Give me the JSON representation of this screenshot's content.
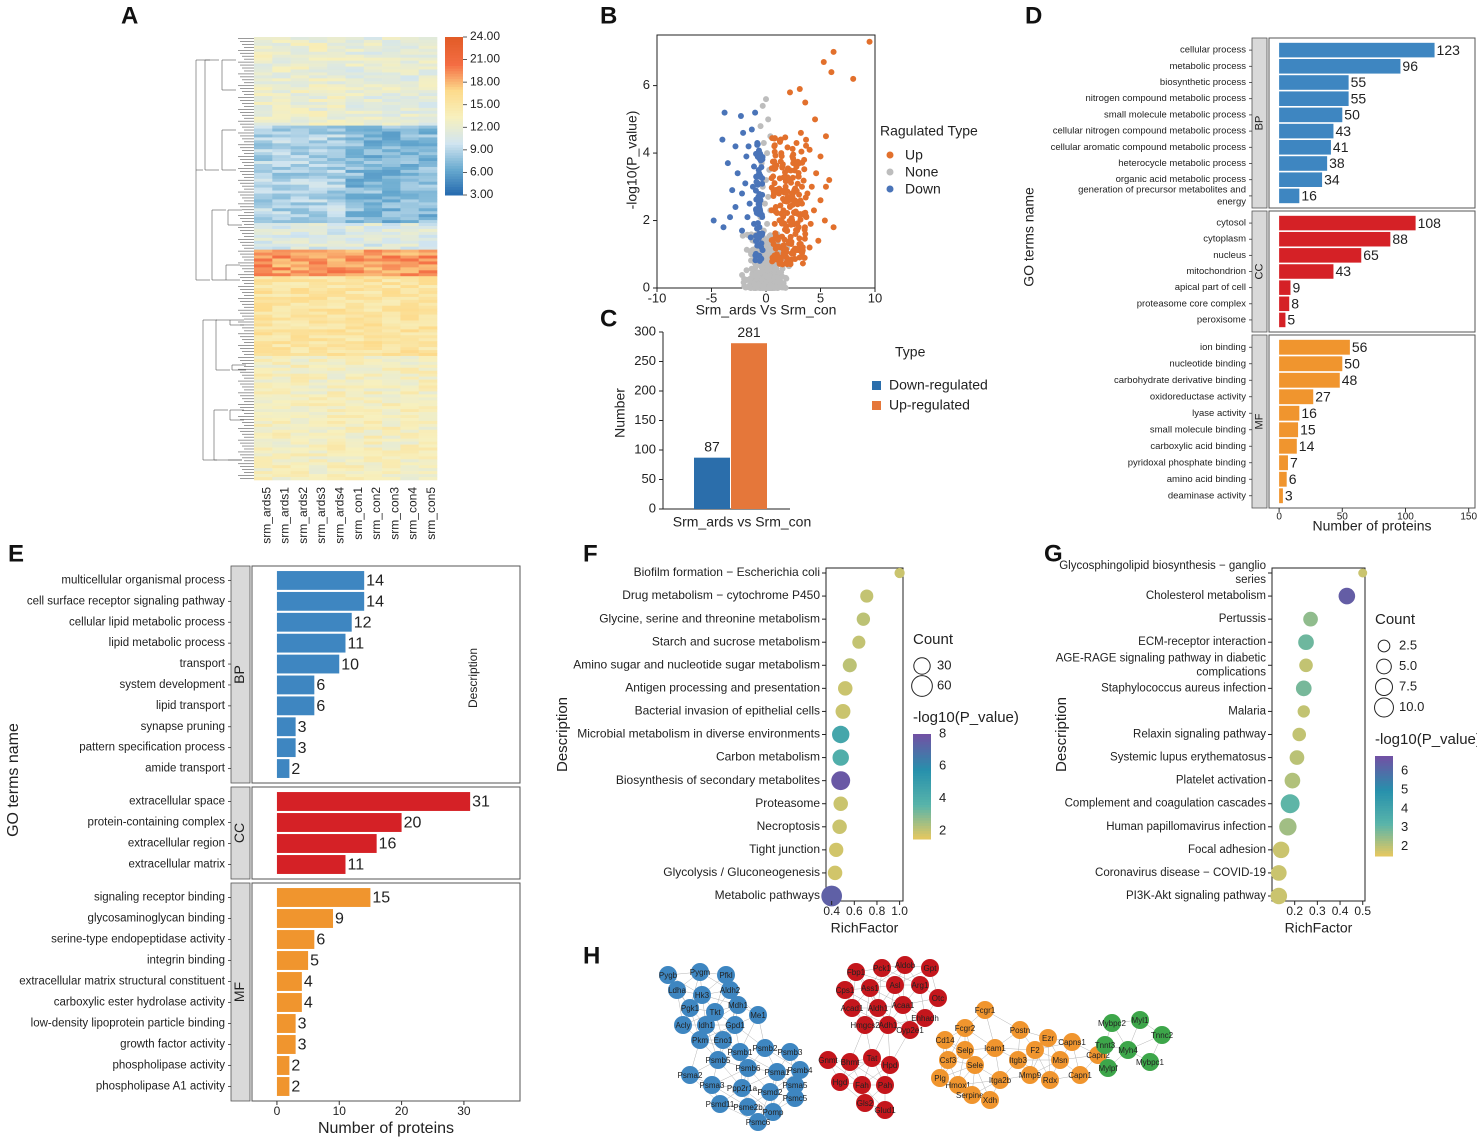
{
  "panel_letters": [
    "A",
    "B",
    "C",
    "D",
    "E",
    "F",
    "G",
    "H"
  ],
  "colors": {
    "up": "#E2702C",
    "down": "#4A74B8",
    "none": "#BDBDBD",
    "bp": "#3E86C1",
    "cc": "#D52126",
    "mf": "#F0952E",
    "bar_down": "#2B6EAB",
    "bar_up": "#E5773A",
    "net_blue": "#3E86C1",
    "net_red": "#C4161C",
    "net_orange": "#F0952E",
    "net_green": "#3DA64A",
    "strip": "#D9D9D9"
  },
  "chart_data": [
    {
      "id": "A",
      "type": "heatmap",
      "columns": [
        "srm_ards5",
        "srm_ards1",
        "srm_ards2",
        "srm_ards3",
        "srm_ards4",
        "srm_con1",
        "srm_con2",
        "srm_con3",
        "srm_con4",
        "srm_con5"
      ],
      "colorbar_ticks": [
        "24.00",
        "21.00",
        "18.00",
        "15.00",
        "12.00",
        "9.00",
        "6.00",
        "3.00"
      ],
      "value_range": [
        3,
        24
      ]
    },
    {
      "id": "B",
      "type": "scatter",
      "xlabel": "Srm_ards Vs Srm_con",
      "ylabel": "-log10(P_value)",
      "xticks": [
        "-10",
        "-5",
        "0",
        "5",
        "10"
      ],
      "yticks": [
        "0",
        "2",
        "4",
        "6"
      ],
      "xlim": [
        -10,
        10
      ],
      "ylim": [
        0,
        7.5
      ],
      "legend_title": "Ragulated Type",
      "legend": [
        "Up",
        "None",
        "Down"
      ],
      "up_points": [
        [
          9.5,
          7.3
        ],
        [
          6.2,
          7.0
        ],
        [
          5.3,
          6.7
        ],
        [
          6.0,
          6.4
        ],
        [
          8.0,
          6.2
        ],
        [
          3.1,
          5.9
        ],
        [
          3.6,
          5.5
        ],
        [
          2.2,
          5.8
        ],
        [
          4.5,
          5.0
        ],
        [
          5.5,
          4.5
        ],
        [
          3.2,
          4.6
        ],
        [
          2.8,
          4.3
        ],
        [
          4.0,
          4.1
        ],
        [
          5.0,
          3.9
        ],
        [
          3.5,
          3.8
        ],
        [
          2.5,
          3.7
        ],
        [
          4.6,
          3.4
        ],
        [
          3.0,
          3.3
        ],
        [
          2.0,
          3.5
        ],
        [
          1.5,
          3.6
        ],
        [
          5.8,
          3.2
        ],
        [
          4.2,
          3.0
        ],
        [
          2.6,
          2.9
        ],
        [
          3.8,
          2.8
        ],
        [
          1.8,
          3.0
        ],
        [
          1.2,
          2.8
        ],
        [
          5.0,
          2.6
        ],
        [
          3.3,
          2.5
        ],
        [
          2.2,
          2.4
        ],
        [
          4.4,
          2.3
        ],
        [
          1.6,
          2.3
        ],
        [
          2.9,
          2.2
        ],
        [
          0.9,
          2.4
        ],
        [
          3.7,
          2.1
        ],
        [
          5.4,
          2.0
        ],
        [
          2.4,
          2.0
        ],
        [
          1.3,
          2.0
        ],
        [
          4.1,
          1.9
        ],
        [
          3.0,
          1.8
        ],
        [
          0.8,
          1.9
        ],
        [
          1.9,
          1.7
        ],
        [
          2.7,
          1.6
        ],
        [
          3.6,
          1.6
        ],
        [
          1.1,
          1.5
        ],
        [
          2.2,
          1.4
        ],
        [
          0.7,
          1.3
        ],
        [
          1.6,
          1.2
        ],
        [
          3.1,
          1.3
        ],
        [
          2.5,
          1.1
        ],
        [
          1.0,
          1.0
        ],
        [
          1.9,
          0.9
        ],
        [
          0.6,
          0.9
        ],
        [
          4.8,
          1.4
        ],
        [
          4.0,
          1.2
        ],
        [
          6.2,
          1.8
        ],
        [
          5.5,
          3.0
        ],
        [
          1.4,
          4.0
        ],
        [
          2.0,
          2.7
        ],
        [
          3.3,
          3.0
        ]
      ],
      "down_points": [
        [
          -3.8,
          5.2
        ],
        [
          -2.3,
          5.1
        ],
        [
          -1.0,
          5.2
        ],
        [
          -4.0,
          4.4
        ],
        [
          -2.1,
          4.6
        ],
        [
          -1.3,
          4.7
        ],
        [
          -2.8,
          4.2
        ],
        [
          -1.6,
          4.2
        ],
        [
          -0.8,
          4.3
        ],
        [
          -3.5,
          3.7
        ],
        [
          -1.8,
          3.9
        ],
        [
          -1.1,
          3.6
        ],
        [
          -2.6,
          3.4
        ],
        [
          -0.9,
          3.3
        ],
        [
          -1.9,
          3.1
        ],
        [
          -3.1,
          2.9
        ],
        [
          -1.2,
          3.0
        ],
        [
          -2.2,
          2.8
        ],
        [
          -0.7,
          2.7
        ],
        [
          -1.5,
          2.5
        ],
        [
          -2.8,
          2.4
        ],
        [
          -0.9,
          2.3
        ],
        [
          -4.8,
          2.0
        ],
        [
          -1.7,
          2.1
        ],
        [
          -3.3,
          2.1
        ],
        [
          -1.1,
          1.9
        ],
        [
          -2.2,
          1.7
        ],
        [
          -0.6,
          1.8
        ],
        [
          -1.4,
          1.5
        ],
        [
          -0.9,
          1.4
        ],
        [
          -3.9,
          1.8
        ]
      ],
      "none_points": [
        [
          0.0,
          5.6
        ],
        [
          -0.3,
          5.4
        ],
        [
          0.2,
          5.0
        ],
        [
          -0.5,
          4.8
        ],
        [
          0.4,
          4.5
        ],
        [
          -0.2,
          4.3
        ],
        [
          0.1,
          4.0
        ],
        [
          -0.4,
          3.7
        ],
        [
          0.3,
          3.5
        ],
        [
          0.0,
          3.2
        ],
        [
          -0.3,
          3.0
        ],
        [
          0.2,
          2.7
        ],
        [
          -0.1,
          2.5
        ],
        [
          0.4,
          2.3
        ],
        [
          -0.5,
          2.1
        ],
        [
          0.1,
          1.9
        ],
        [
          -0.2,
          1.7
        ],
        [
          0.3,
          1.5
        ]
      ]
    },
    {
      "id": "C",
      "type": "bar",
      "categories": [
        "Srm_ards vs Srm_con"
      ],
      "series": [
        {
          "name": "Down-regulated",
          "values": [
            87
          ]
        },
        {
          "name": "Up-regulated",
          "values": [
            281
          ]
        }
      ],
      "ylabel": "Number",
      "yticks": [
        "0",
        "50",
        "100",
        "150",
        "200",
        "250",
        "300"
      ],
      "ylim": [
        0,
        300
      ],
      "legend_title": "Type"
    },
    {
      "id": "D",
      "type": "bar",
      "orientation": "horizontal",
      "ylabel": "GO terms name",
      "xlabel": "Number of proteins",
      "xticks": [
        "0",
        "50",
        "100",
        "150"
      ],
      "xlim": [
        -8,
        155
      ],
      "groups": [
        {
          "name": "BP",
          "labels": [
            "cellular process",
            "metabolic process",
            "biosynthetic process",
            "nitrogen compound metabolic process",
            "small molecule metabolic process",
            "cellular nitrogen compound metabolic process",
            "cellular aromatic compound metabolic process",
            "heterocycle metabolic process",
            "organic acid metabolic process",
            "generation of precursor metabolites and"
          ],
          "label_line2": "energy",
          "values": [
            123,
            96,
            55,
            55,
            50,
            43,
            41,
            38,
            34,
            16
          ]
        },
        {
          "name": "CC",
          "labels": [
            "cytosol",
            "cytoplasm",
            "nucleus",
            "mitochondrion",
            "apical part of cell",
            "proteasome core complex",
            "peroxisome"
          ],
          "values": [
            108,
            88,
            65,
            43,
            9,
            8,
            5
          ]
        },
        {
          "name": "MF",
          "labels": [
            "ion binding",
            "nucleotide binding",
            "carbohydrate derivative binding",
            "oxidoreductase activity",
            "lyase activity",
            "small molecule binding",
            "carboxylic acid binding",
            "pyridoxal phosphate binding",
            "amino acid binding",
            "deaminase activity"
          ],
          "values": [
            56,
            50,
            48,
            27,
            16,
            15,
            14,
            7,
            6,
            3
          ]
        }
      ]
    },
    {
      "id": "E",
      "type": "bar",
      "orientation": "horizontal",
      "ylabel": "GO terms name",
      "xlabel": "Number of proteins",
      "xticks": [
        "0",
        "10",
        "20",
        "30"
      ],
      "xlim": [
        -4,
        39
      ],
      "inner_label": "Description",
      "groups": [
        {
          "name": "BP",
          "labels": [
            "multicellular organismal process",
            "cell surface receptor signaling pathway",
            "cellular lipid metabolic process",
            "lipid metabolic process",
            "transport",
            "system development",
            "lipid transport",
            "synapse pruning",
            "pattern specification process",
            "amide transport"
          ],
          "values": [
            14,
            14,
            12,
            11,
            10,
            6,
            6,
            3,
            3,
            2
          ]
        },
        {
          "name": "CC",
          "labels": [
            "extracellular space",
            "protein-containing complex",
            "extracellular region",
            "extracellular matrix"
          ],
          "values": [
            31,
            20,
            16,
            11
          ]
        },
        {
          "name": "MF",
          "labels": [
            "signaling receptor binding",
            "glycosaminoglycan binding",
            "serine-type endopeptidase activity",
            "integrin binding",
            "extracellular matrix structural constituent",
            "carboxylic ester hydrolase activity",
            "low-density lipoprotein particle binding",
            "growth factor activity",
            "phospholipase activity",
            "phospholipase A1 activity"
          ],
          "values": [
            15,
            9,
            6,
            5,
            4,
            4,
            3,
            3,
            2,
            2
          ]
        }
      ]
    },
    {
      "id": "F",
      "type": "scatter",
      "ylabel": "Description",
      "xlabel": "RichFactor",
      "xticks": [
        "0.4",
        "0.6",
        "0.8",
        "1.0"
      ],
      "xlim": [
        0.35,
        1.03
      ],
      "size_legend_title": "Count",
      "size_legend": [
        "30",
        "60"
      ],
      "color_legend_title": "-log10(P_value)",
      "color_ticks": [
        "8",
        "6",
        "4",
        "2"
      ],
      "color_range": [
        1.5,
        8
      ],
      "terms": [
        {
          "name": "Biofilm formation − Escherichia coli",
          "x": 1.0,
          "count": 5,
          "p": 2.0
        },
        {
          "name": "Drug metabolism − cytochrome P450",
          "x": 0.71,
          "count": 14,
          "p": 2.1
        },
        {
          "name": "Glycine, serine and threonine metabolism",
          "x": 0.68,
          "count": 15,
          "p": 2.2
        },
        {
          "name": "Starch and sucrose metabolism",
          "x": 0.64,
          "count": 14,
          "p": 2.1
        },
        {
          "name": "Amino sugar and nucleotide sugar metabolism",
          "x": 0.56,
          "count": 18,
          "p": 2.2
        },
        {
          "name": "Antigen processing and presentation",
          "x": 0.52,
          "count": 20,
          "p": 2.0
        },
        {
          "name": "Bacterial invasion of epithelial cells",
          "x": 0.5,
          "count": 22,
          "p": 2.0
        },
        {
          "name": "Microbial metabolism in diverse environments",
          "x": 0.48,
          "count": 36,
          "p": 4.5
        },
        {
          "name": "Carbon metabolism",
          "x": 0.48,
          "count": 30,
          "p": 4.0
        },
        {
          "name": "Biosynthesis of secondary metabolites",
          "x": 0.48,
          "count": 46,
          "p": 7.8
        },
        {
          "name": "Proteasome",
          "x": 0.48,
          "count": 20,
          "p": 2.0
        },
        {
          "name": "Necroptosis",
          "x": 0.47,
          "count": 20,
          "p": 2.0
        },
        {
          "name": "Tight junction",
          "x": 0.44,
          "count": 19,
          "p": 1.9
        },
        {
          "name": "Glycolysis / Gluconeogenesis",
          "x": 0.43,
          "count": 20,
          "p": 1.9
        },
        {
          "name": "Metabolic pathways",
          "x": 0.4,
          "count": 60,
          "p": 7.5
        }
      ]
    },
    {
      "id": "G",
      "type": "scatter",
      "ylabel": "Description",
      "xlabel": "RichFactor",
      "xticks": [
        "0.2",
        "0.3",
        "0.4",
        "0.5"
      ],
      "xlim": [
        0.1,
        0.51
      ],
      "size_legend_title": "Count",
      "size_legend": [
        "2.5",
        "5.0",
        "7.5",
        "10.0"
      ],
      "color_legend_title": "-log10(P_value)",
      "color_ticks": [
        "6",
        "5",
        "4",
        "3",
        "2"
      ],
      "color_range": [
        1.5,
        6.8
      ],
      "terms": [
        {
          "name": "Glycosphingolipid biosynthesis − ganglio",
          "name2": "series",
          "x": 0.5,
          "count": 1,
          "p": 1.9
        },
        {
          "name": "Cholesterol metabolism",
          "x": 0.43,
          "count": 7,
          "p": 6.5
        },
        {
          "name": "Pertussis",
          "x": 0.27,
          "count": 5,
          "p": 2.6
        },
        {
          "name": "ECM-receptor interaction",
          "x": 0.25,
          "count": 6,
          "p": 3.0
        },
        {
          "name": "AGE-RAGE signaling pathway in diabetic",
          "name2": "complications",
          "x": 0.25,
          "count": 4,
          "p": 2.0
        },
        {
          "name": "Staphylococcus aureus infection",
          "x": 0.24,
          "count": 6,
          "p": 2.9
        },
        {
          "name": "Malaria",
          "x": 0.24,
          "count": 3,
          "p": 2.0
        },
        {
          "name": "Relaxin signaling pathway",
          "x": 0.22,
          "count": 4,
          "p": 2.0
        },
        {
          "name": "Systemic lupus erythematosus",
          "x": 0.21,
          "count": 5,
          "p": 2.1
        },
        {
          "name": "Platelet activation",
          "x": 0.19,
          "count": 6,
          "p": 2.2
        },
        {
          "name": "Complement and coagulation cascades",
          "x": 0.18,
          "count": 10,
          "p": 3.2
        },
        {
          "name": "Human papillomavirus infection",
          "x": 0.17,
          "count": 8,
          "p": 2.4
        },
        {
          "name": "Focal adhesion",
          "x": 0.14,
          "count": 7,
          "p": 1.9
        },
        {
          "name": "Coronavirus disease − COVID-19",
          "x": 0.13,
          "count": 6,
          "p": 1.9
        },
        {
          "name": "PI3K-Akt signaling pathway",
          "x": 0.13,
          "count": 7,
          "p": 1.9
        }
      ]
    },
    {
      "id": "H",
      "type": "network",
      "clusters": [
        {
          "name": "blue",
          "labels": [
            "Pygb",
            "Pygm",
            "Pfkl",
            "Ldha",
            "Hk3",
            "Aldh2",
            "Pgk1",
            "Tkt",
            "Mdh1",
            "Acly",
            "Idh1",
            "Gpd1",
            "Me1",
            "Pkm",
            "Eno1",
            "Psmb1",
            "Psmb2",
            "Psmb3",
            "Psmb4",
            "Psmb5",
            "Psmb6",
            "Psma1",
            "Psma2",
            "Psma3",
            "Ppp2r1a",
            "Psmd2",
            "Psmc5",
            "Psmd11",
            "Psme2b",
            "Pomp",
            "Psmc6",
            "Psma5"
          ]
        },
        {
          "name": "red",
          "labels": [
            "Fbp1",
            "Pck1",
            "Aldob",
            "Gpt",
            "Cps1",
            "Ass1",
            "Asl",
            "Arg1",
            "Otc",
            "Acad1",
            "Aldh1",
            "Acaa1",
            "Ehhadh",
            "Hmgcs2",
            "Adh1",
            "Cyp2e1",
            "Gnmt",
            "Bhmt",
            "Tat",
            "Hpd",
            "Hgd",
            "Fah",
            "Pah",
            "Gls2",
            "Glud1"
          ]
        },
        {
          "name": "orange",
          "labels": [
            "Fcgr1",
            "Fcgr2",
            "Cd14",
            "Postn",
            "Ezr",
            "Capns1",
            "Msn",
            "Capn2",
            "Capn1",
            "Rdx",
            "Csf3",
            "Selp",
            "Sele",
            "Icam1",
            "Itgb3",
            "Itga2b",
            "Hmox1",
            "Serpine1",
            "Mmp9",
            "Xdh",
            "Plg",
            "F2"
          ]
        },
        {
          "name": "green",
          "labels": [
            "Mybpc2",
            "Myl1",
            "Tnnc2",
            "Tnnt3",
            "Myh4",
            "Mylpf",
            "Mybpc1"
          ]
        }
      ]
    }
  ]
}
